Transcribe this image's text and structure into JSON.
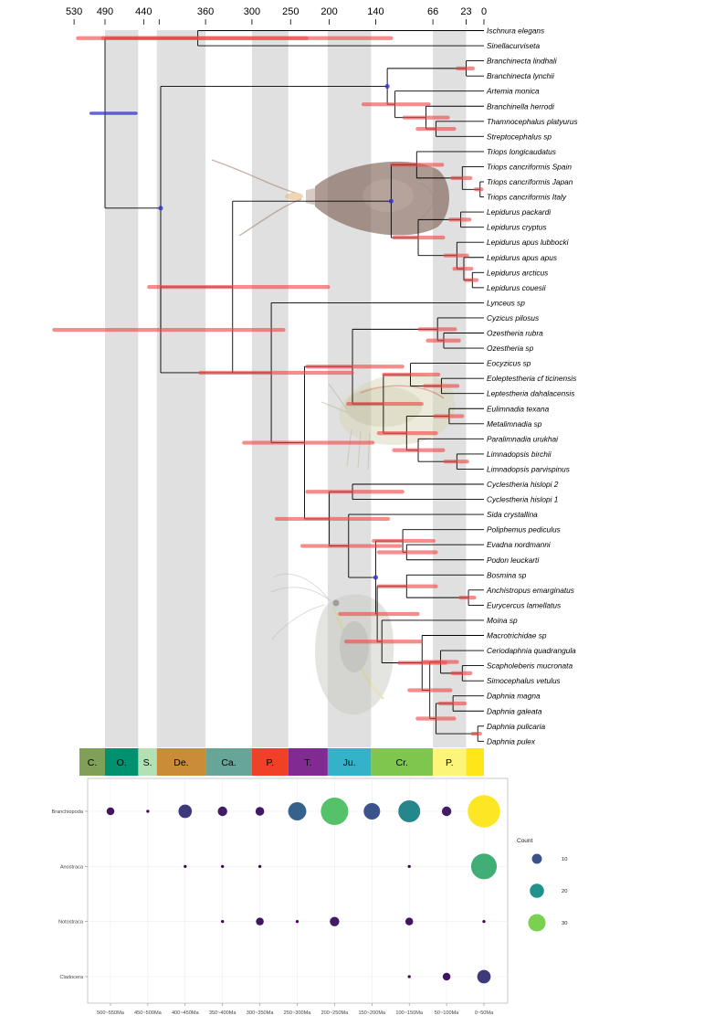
{
  "top_axis_ticks": [
    {
      "ma": 530,
      "label": "530"
    },
    {
      "ma": 490,
      "label": "490"
    },
    {
      "ma": 440,
      "label": "440"
    },
    {
      "ma": 420,
      "label": ""
    },
    {
      "ma": 360,
      "label": "360"
    },
    {
      "ma": 300,
      "label": "300"
    },
    {
      "ma": 250,
      "label": "250"
    },
    {
      "ma": 200,
      "label": "200"
    },
    {
      "ma": 140,
      "label": "140"
    },
    {
      "ma": 66,
      "label": "66"
    },
    {
      "ma": 23,
      "label": "23"
    },
    {
      "ma": 0,
      "label": "0"
    }
  ],
  "shaded_bands_ma": [
    [
      490,
      447
    ],
    [
      423,
      360
    ],
    [
      300,
      253
    ],
    [
      202,
      146
    ],
    [
      66,
      23
    ]
  ],
  "periods": [
    {
      "label": "C.",
      "start": 538,
      "end": 490,
      "color": "#7fa056"
    },
    {
      "label": "O.",
      "start": 490,
      "end": 447,
      "color": "#009270"
    },
    {
      "label": "S.",
      "start": 447,
      "end": 423,
      "color": "#b3e1b6"
    },
    {
      "label": "De.",
      "start": 423,
      "end": 360,
      "color": "#cb8c37"
    },
    {
      "label": "Ca.",
      "start": 360,
      "end": 300,
      "color": "#67a599"
    },
    {
      "label": "P.",
      "start": 300,
      "end": 253,
      "color": "#f04028"
    },
    {
      "label": "T.",
      "start": 253,
      "end": 202,
      "color": "#812b92"
    },
    {
      "label": "Ju.",
      "start": 202,
      "end": 146,
      "color": "#34b2c9"
    },
    {
      "label": "Cr.",
      "start": 146,
      "end": 66,
      "color": "#7fc64e"
    },
    {
      "label": "P.",
      "start": 66,
      "end": 23,
      "color": "#fdf57a"
    },
    {
      "label": "",
      "start": 23,
      "end": 0,
      "color": "#ffe619"
    }
  ],
  "taxa": [
    "Ischnura elegans",
    "Sinellacurviseta",
    "Branchinecta lindhali",
    "Branchinecta lynchii",
    "Artemia monica",
    "Branchinella herrodi",
    "Thamnocephalus platyurus",
    "Streptocephalus sp",
    "Triops longicaudatus",
    "Triops cancriformis Spain",
    "Triops cancriformis Japan",
    "Triops cancriformis Italy",
    "Lepidurus packardi",
    "Lepidurus cryptus",
    "Lepidurus apus lubbocki",
    "Lepidurus apus apus",
    "Lepidurus arcticus",
    "Lepidurus couesii",
    "Lynceus sp",
    "Cyzicus pilosus",
    "Ozestheria rubra",
    "Ozestheria sp",
    "Eocyzicus sp",
    "Eoleptestheria cf ticinensis",
    "Leptestheria dahalacensis",
    "Eulimnadia texana",
    "Metalimnadia sp",
    "Paralimnadia urukhai",
    "Limnadopsis birchii",
    "Limnadopsis parvispinus",
    "Cyclestheria hislopi 2",
    "Cyclestheria hislopi 1",
    "Sida crystallina",
    "Poliphemus pediculus",
    "Evadna nordmanni",
    "Podon leuckarti",
    "Bosmina sp",
    "Anchistropus emarginatus",
    "Eurycercus lamellatus",
    "Moina sp",
    "Macrotrichidae sp",
    "Ceriodaphnia quadrangula",
    "Scapholeberis mucronata",
    "Simocephalus vetulus",
    "Daphnia magna",
    "Daphnia galeata",
    "Daphnia pulicaria",
    "Daphnia pulex"
  ],
  "tree_nodes": [
    {
      "id": "n1",
      "age": 490,
      "c": [
        "n2",
        "n3"
      ]
    },
    {
      "id": "n2",
      "age": 370,
      "c": [
        0,
        1
      ]
    },
    {
      "id": "n3",
      "age": 418,
      "c": [
        "n4",
        "n6"
      ]
    },
    {
      "id": "n4",
      "age": 125,
      "c": [
        "n4a",
        "n5"
      ]
    },
    {
      "id": "n4a",
      "age": 23,
      "c": [
        2,
        3
      ]
    },
    {
      "id": "n5",
      "age": 115,
      "c": [
        4,
        "n5a"
      ]
    },
    {
      "id": "n5a",
      "age": 75,
      "c": [
        5,
        "n5b"
      ]
    },
    {
      "id": "n5b",
      "age": 62,
      "c": [
        6,
        7
      ]
    },
    {
      "id": "n6",
      "age": 418,
      "c": [
        "n7",
        "n10"
      ]
    },
    {
      "id": "n7",
      "age": 325,
      "c": [
        "n8",
        "n11"
      ]
    },
    {
      "id": "n8",
      "age": 120,
      "c": [
        "n8a",
        "n9"
      ]
    },
    {
      "id": "n8a",
      "age": 87,
      "c": [
        8,
        "n8b"
      ]
    },
    {
      "id": "n8b",
      "age": 28,
      "c": [
        9,
        "n8c"
      ]
    },
    {
      "id": "n8c",
      "age": 5,
      "c": [
        10,
        11
      ]
    },
    {
      "id": "n9",
      "age": 85,
      "c": [
        "n9a",
        "n9b"
      ]
    },
    {
      "id": "n9a",
      "age": 30,
      "c": [
        12,
        13
      ]
    },
    {
      "id": "n9b",
      "age": 35,
      "c": [
        14,
        "n9c"
      ]
    },
    {
      "id": "n9c",
      "age": 26,
      "c": [
        15,
        "n9d"
      ]
    },
    {
      "id": "n9d",
      "age": 15,
      "c": [
        16,
        17
      ]
    },
    {
      "id": "n10",
      "age": 275,
      "c": [
        18,
        "n12"
      ]
    },
    {
      "id": "n11",
      "age": 325,
      "c": [
        "n10"
      ]
    },
    {
      "id": "n12",
      "age": 232,
      "c": [
        "n13",
        "n20"
      ]
    },
    {
      "id": "n13",
      "age": 170,
      "c": [
        "n14",
        "n15"
      ]
    },
    {
      "id": "n14",
      "age": 60,
      "c": [
        19,
        "n14a"
      ]
    },
    {
      "id": "n14a",
      "age": 52,
      "c": [
        20,
        21
      ]
    },
    {
      "id": "n15",
      "age": 130,
      "c": [
        "n16",
        "n18"
      ]
    },
    {
      "id": "n16",
      "age": 95,
      "c": [
        22,
        "n17"
      ]
    },
    {
      "id": "n17",
      "age": 55,
      "c": [
        23,
        24
      ]
    },
    {
      "id": "n18",
      "age": 100,
      "c": [
        "n18a",
        "n19"
      ]
    },
    {
      "id": "n18a",
      "age": 45,
      "c": [
        25,
        26
      ]
    },
    {
      "id": "n19",
      "age": 85,
      "c": [
        27,
        "n19a"
      ]
    },
    {
      "id": "n19a",
      "age": 35,
      "c": [
        28,
        29
      ]
    },
    {
      "id": "n20",
      "age": 200,
      "c": [
        "n21",
        "n22"
      ]
    },
    {
      "id": "n21",
      "age": 170,
      "c": [
        30,
        31
      ]
    },
    {
      "id": "n22",
      "age": 175,
      "c": [
        32,
        "n23"
      ]
    },
    {
      "id": "n23",
      "age": 140,
      "c": [
        "n24",
        "n25"
      ]
    },
    {
      "id": "n24",
      "age": 105,
      "c": [
        33,
        "n24a"
      ]
    },
    {
      "id": "n24a",
      "age": 100,
      "c": [
        34,
        35
      ]
    },
    {
      "id": "n25",
      "age": 138,
      "c": [
        "n26",
        "n27"
      ]
    },
    {
      "id": "n26",
      "age": 100,
      "c": [
        36,
        "n26a"
      ]
    },
    {
      "id": "n26a",
      "age": 20,
      "c": [
        37,
        38
      ]
    },
    {
      "id": "n27",
      "age": 132,
      "c": [
        39,
        "n28"
      ]
    },
    {
      "id": "n28",
      "age": 80,
      "c": [
        40,
        "n29"
      ]
    },
    {
      "id": "n29",
      "age": 70,
      "c": [
        "n30",
        "n31"
      ]
    },
    {
      "id": "n30",
      "age": 56,
      "c": [
        41,
        "n30a"
      ]
    },
    {
      "id": "n30a",
      "age": 28,
      "c": [
        42,
        43
      ]
    },
    {
      "id": "n31",
      "age": 62,
      "c": [
        "n31a",
        "n31b"
      ]
    },
    {
      "id": "n31a",
      "age": 40,
      "c": [
        44,
        45
      ]
    },
    {
      "id": "n31b",
      "age": 8,
      "c": [
        46,
        47
      ]
    }
  ],
  "bubble_chart": {
    "x_categories": [
      "500~550Ma",
      "450~500Ma",
      "400~450Ma",
      "350~400Ma",
      "300~350Ma",
      "250~300Ma",
      "200~250Ma",
      "150~200Ma",
      "100~150Ma",
      "50~100Ma",
      "0~50Ma"
    ],
    "y_categories": [
      "Branchiopoda",
      "Anostraca",
      "Notostraca",
      "Cladocera"
    ],
    "points": [
      {
        "group": "Branchiopoda",
        "bin": "500~550Ma",
        "count": 2
      },
      {
        "group": "Branchiopoda",
        "bin": "450~500Ma",
        "count": 0.3
      },
      {
        "group": "Branchiopoda",
        "bin": "400~450Ma",
        "count": 6
      },
      {
        "group": "Branchiopoda",
        "bin": "350~400Ma",
        "count": 3
      },
      {
        "group": "Branchiopoda",
        "bin": "300~350Ma",
        "count": 2.5
      },
      {
        "group": "Branchiopoda",
        "bin": "250~300Ma",
        "count": 11
      },
      {
        "group": "Branchiopoda",
        "bin": "200~250Ma",
        "count": 25
      },
      {
        "group": "Branchiopoda",
        "bin": "150~200Ma",
        "count": 9
      },
      {
        "group": "Branchiopoda",
        "bin": "100~150Ma",
        "count": 16
      },
      {
        "group": "Branchiopoda",
        "bin": "50~100Ma",
        "count": 3
      },
      {
        "group": "Branchiopoda",
        "bin": "0~50Ma",
        "count": 35
      },
      {
        "group": "Anostraca",
        "bin": "400~450Ma",
        "count": 0.3
      },
      {
        "group": "Anostraca",
        "bin": "350~400Ma",
        "count": 0.3
      },
      {
        "group": "Anostraca",
        "bin": "300~350Ma",
        "count": 0.3
      },
      {
        "group": "Anostraca",
        "bin": "100~150Ma",
        "count": 0.3
      },
      {
        "group": "Anostraca",
        "bin": "0~50Ma",
        "count": 22
      },
      {
        "group": "Notostraca",
        "bin": "350~400Ma",
        "count": 0.3
      },
      {
        "group": "Notostraca",
        "bin": "300~350Ma",
        "count": 2
      },
      {
        "group": "Notostraca",
        "bin": "250~300Ma",
        "count": 0.3
      },
      {
        "group": "Notostraca",
        "bin": "200~250Ma",
        "count": 3
      },
      {
        "group": "Notostraca",
        "bin": "100~150Ma",
        "count": 2
      },
      {
        "group": "Notostraca",
        "bin": "0~50Ma",
        "count": 0.3
      },
      {
        "group": "Cladocera",
        "bin": "100~150Ma",
        "count": 0.3
      },
      {
        "group": "Cladocera",
        "bin": "50~100Ma",
        "count": 2
      },
      {
        "group": "Cladocera",
        "bin": "0~50Ma",
        "count": 6
      }
    ],
    "legend": {
      "title": "Count",
      "items": [
        {
          "label": "10",
          "count": 10,
          "color": "#3b528b"
        },
        {
          "label": "20",
          "count": 20,
          "color": "#21918c"
        },
        {
          "label": "30",
          "count": 30,
          "color": "#7ad151"
        }
      ]
    },
    "color_stops": [
      "#440154",
      "#3b528b",
      "#21918c",
      "#5ec962",
      "#fde725"
    ]
  },
  "colors": {
    "bar_red": "#f04848",
    "bar_blue": "#3333cc",
    "band_gray": "#e0e0e0"
  }
}
